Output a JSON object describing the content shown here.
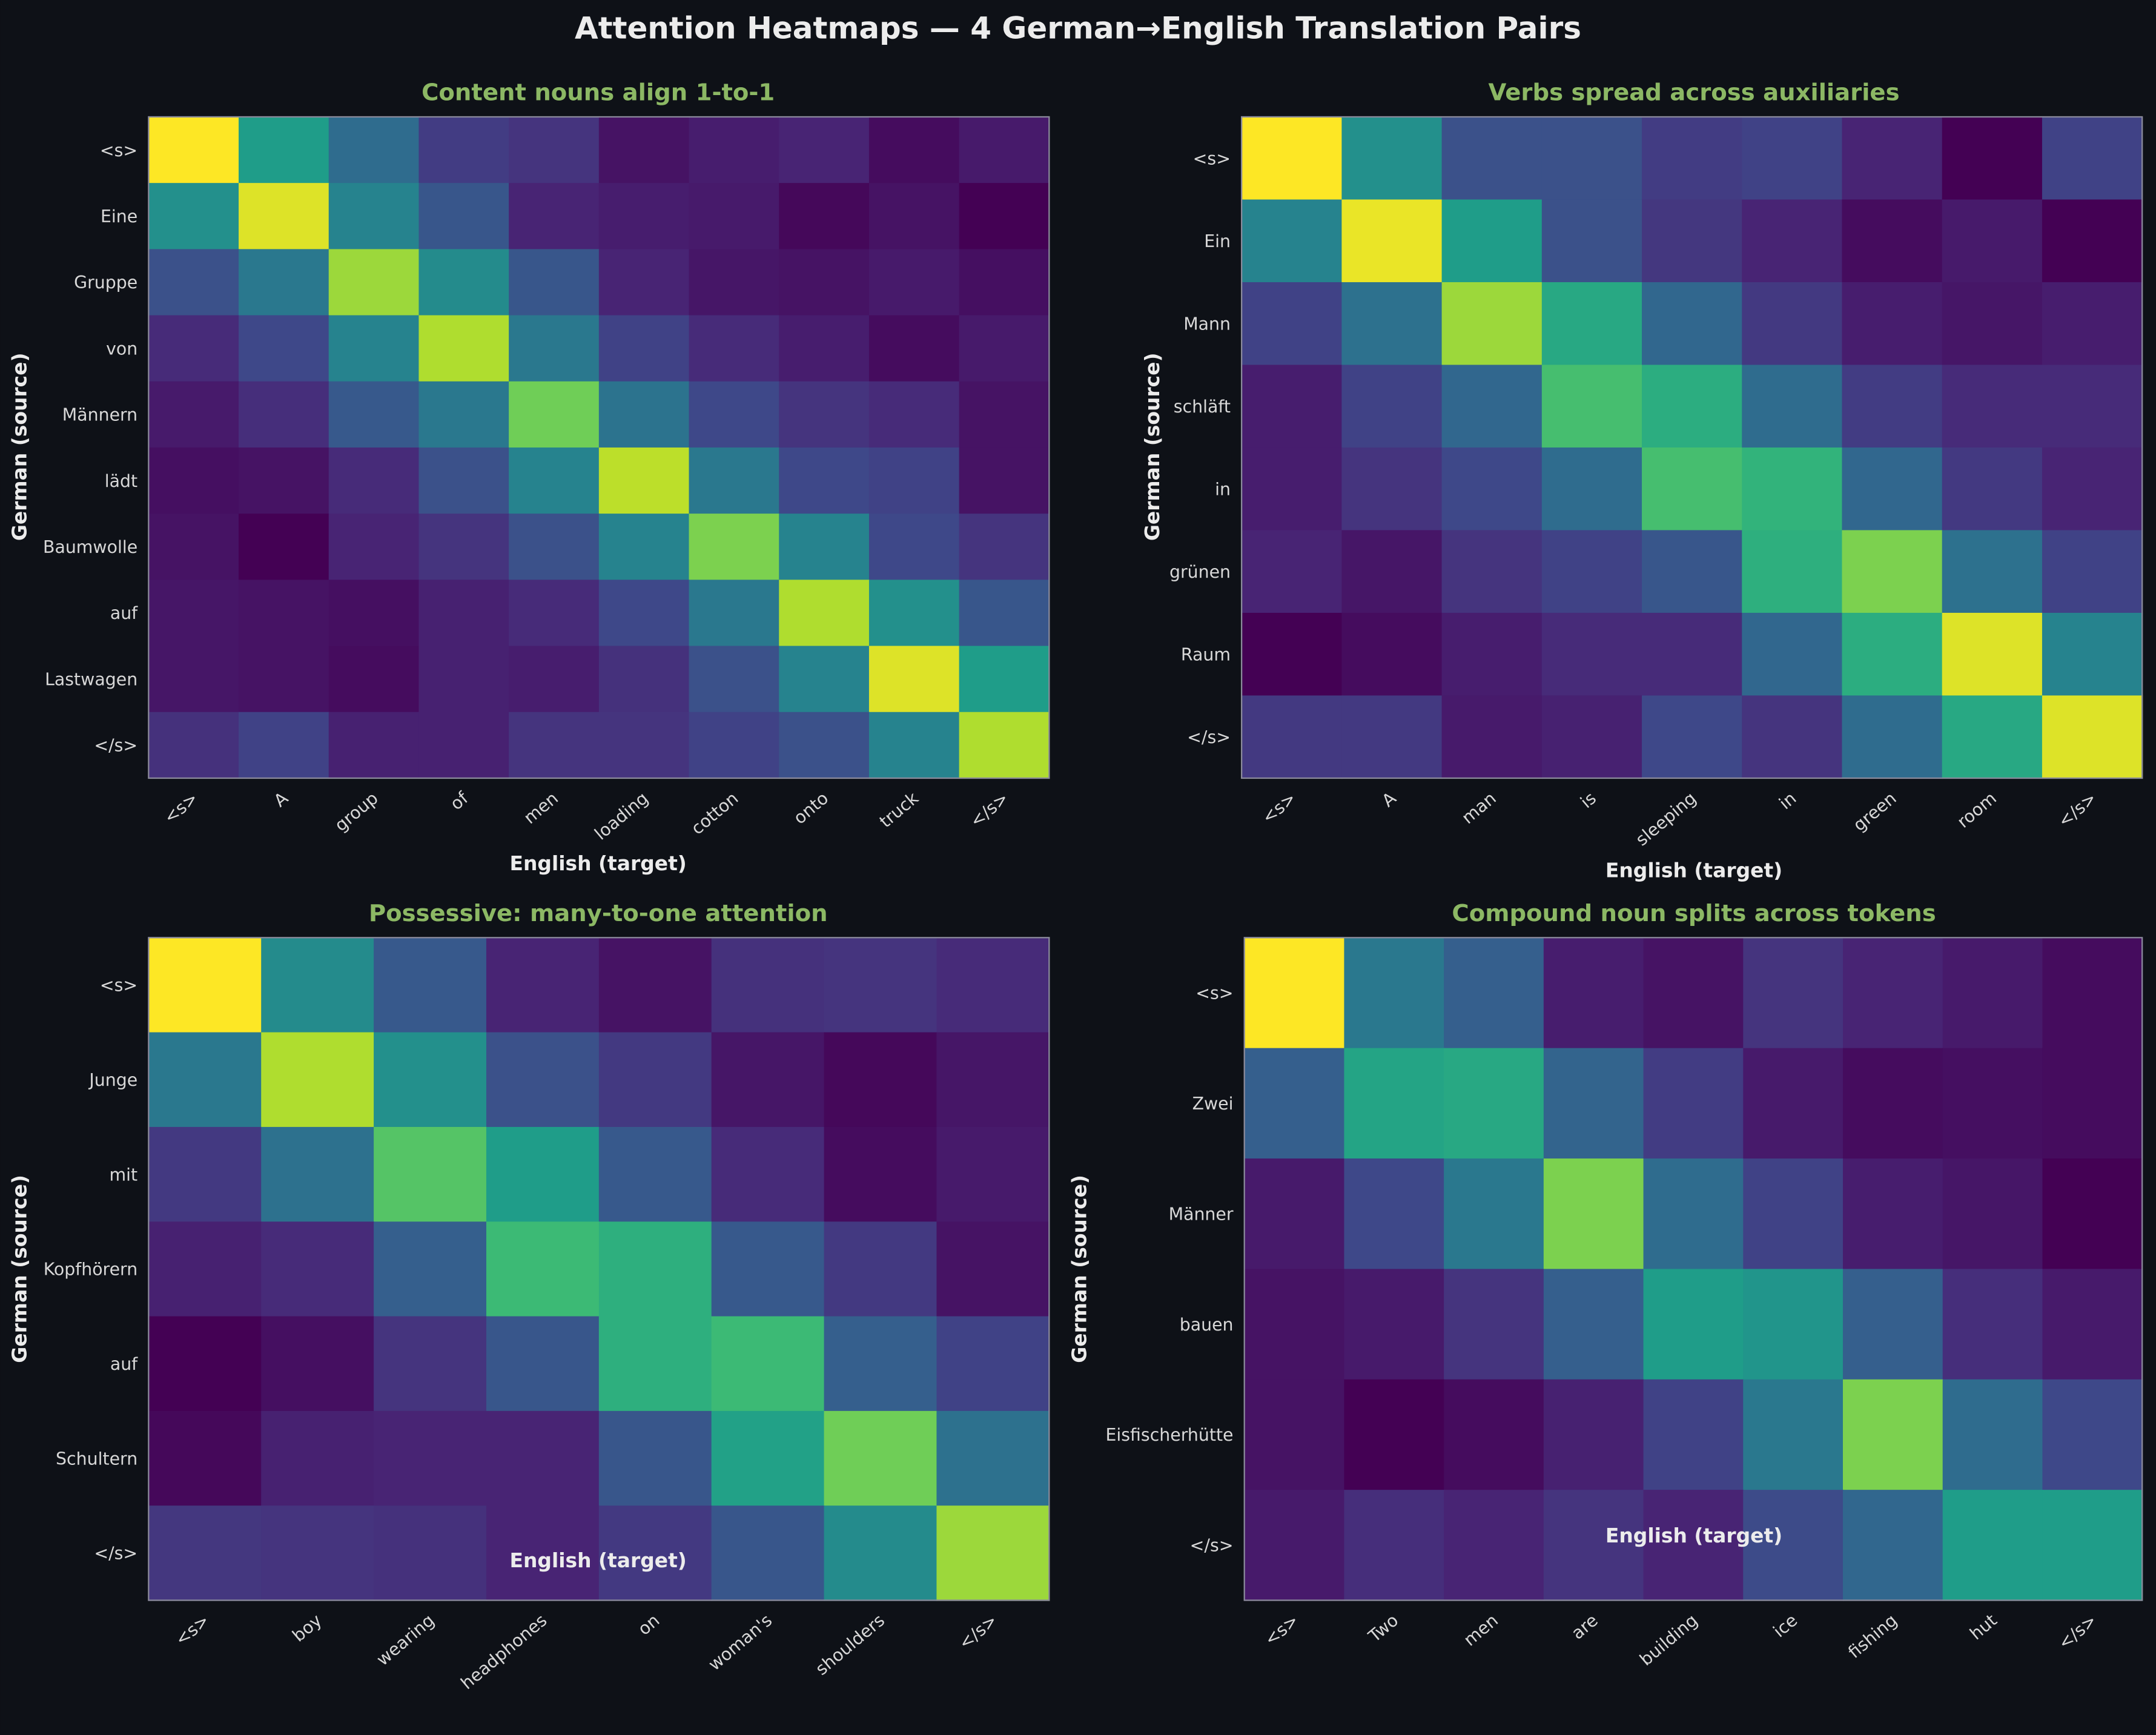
{
  "title": "Attention Heatmaps — 4 German→English Translation Pairs",
  "colormap": [
    "#440154",
    "#482878",
    "#3e4989",
    "#31688e",
    "#26828e",
    "#1f9e89",
    "#35b779",
    "#6ece58",
    "#b5de2b",
    "#fde725"
  ],
  "background": "#0e1117",
  "title_color": "#8cb864",
  "chart_data": [
    {
      "type": "heatmap",
      "title": "Content nouns align 1-to-1",
      "xlabel": "English (target)",
      "ylabel": "German (source)",
      "x": [
        "<s>",
        "A",
        "group",
        "of",
        "men",
        "loading",
        "cotton",
        "onto",
        "truck",
        "</s>"
      ],
      "y": [
        "<s>",
        "Eine",
        "Gruppe",
        "von",
        "Männern",
        "lädt",
        "Baumwolle",
        "auf",
        "Lastwagen",
        "</s>"
      ],
      "values": [
        [
          1.0,
          0.55,
          0.35,
          0.18,
          0.15,
          0.05,
          0.08,
          0.1,
          0.03,
          0.07
        ],
        [
          0.5,
          0.95,
          0.45,
          0.27,
          0.1,
          0.08,
          0.07,
          0.02,
          0.05,
          0.0
        ],
        [
          0.25,
          0.4,
          0.85,
          0.48,
          0.27,
          0.1,
          0.06,
          0.05,
          0.07,
          0.04
        ],
        [
          0.12,
          0.22,
          0.45,
          0.88,
          0.4,
          0.2,
          0.12,
          0.08,
          0.03,
          0.07
        ],
        [
          0.07,
          0.13,
          0.28,
          0.4,
          0.78,
          0.38,
          0.22,
          0.15,
          0.12,
          0.05
        ],
        [
          0.04,
          0.05,
          0.12,
          0.25,
          0.45,
          0.9,
          0.4,
          0.22,
          0.2,
          0.05
        ],
        [
          0.05,
          0.0,
          0.1,
          0.15,
          0.25,
          0.45,
          0.8,
          0.45,
          0.22,
          0.15
        ],
        [
          0.06,
          0.05,
          0.04,
          0.09,
          0.12,
          0.22,
          0.4,
          0.88,
          0.5,
          0.27
        ],
        [
          0.06,
          0.05,
          0.03,
          0.09,
          0.08,
          0.14,
          0.25,
          0.45,
          0.95,
          0.55
        ],
        [
          0.14,
          0.2,
          0.09,
          0.09,
          0.15,
          0.15,
          0.2,
          0.25,
          0.45,
          0.88
        ]
      ]
    },
    {
      "type": "heatmap",
      "title": "Verbs spread across auxiliaries",
      "xlabel": "English (target)",
      "ylabel": "German (source)",
      "x": [
        "<s>",
        "A",
        "man",
        "is",
        "sleeping",
        "in",
        "green",
        "room",
        "</s>"
      ],
      "y": [
        "<s>",
        "Ein",
        "Mann",
        "schläft",
        "in",
        "grünen",
        "Raum",
        "</s>"
      ],
      "values": [
        [
          1.0,
          0.5,
          0.25,
          0.25,
          0.18,
          0.2,
          0.1,
          0.0,
          0.2
        ],
        [
          0.45,
          0.97,
          0.55,
          0.25,
          0.16,
          0.1,
          0.03,
          0.07,
          0.0
        ],
        [
          0.2,
          0.37,
          0.85,
          0.6,
          0.33,
          0.17,
          0.08,
          0.06,
          0.08
        ],
        [
          0.08,
          0.2,
          0.33,
          0.7,
          0.62,
          0.35,
          0.18,
          0.12,
          0.12
        ],
        [
          0.08,
          0.15,
          0.22,
          0.35,
          0.7,
          0.65,
          0.33,
          0.17,
          0.1
        ],
        [
          0.1,
          0.06,
          0.15,
          0.2,
          0.27,
          0.63,
          0.8,
          0.37,
          0.2
        ],
        [
          0.0,
          0.03,
          0.08,
          0.12,
          0.12,
          0.33,
          0.62,
          0.95,
          0.45
        ],
        [
          0.17,
          0.17,
          0.07,
          0.09,
          0.22,
          0.15,
          0.35,
          0.6,
          0.95
        ]
      ]
    },
    {
      "type": "heatmap",
      "title": "Possessive: many-to-one attention",
      "xlabel": "English (target)",
      "ylabel": "German (source)",
      "x": [
        "<s>",
        "boy",
        "wearing",
        "headphones",
        "on",
        "woman's",
        "shoulders",
        "</s>"
      ],
      "y": [
        "<s>",
        "Junge",
        "mit",
        "Kopfhörern",
        "auf",
        "Schultern",
        "</s>"
      ],
      "values": [
        [
          1.0,
          0.48,
          0.28,
          0.1,
          0.05,
          0.14,
          0.15,
          0.12
        ],
        [
          0.4,
          0.88,
          0.5,
          0.25,
          0.17,
          0.06,
          0.02,
          0.06
        ],
        [
          0.17,
          0.37,
          0.73,
          0.55,
          0.28,
          0.12,
          0.03,
          0.07
        ],
        [
          0.09,
          0.12,
          0.3,
          0.68,
          0.63,
          0.28,
          0.17,
          0.05
        ],
        [
          0.0,
          0.04,
          0.15,
          0.27,
          0.63,
          0.68,
          0.3,
          0.2
        ],
        [
          0.02,
          0.09,
          0.1,
          0.1,
          0.27,
          0.57,
          0.78,
          0.37
        ],
        [
          0.16,
          0.15,
          0.14,
          0.1,
          0.17,
          0.27,
          0.48,
          0.85
        ]
      ]
    },
    {
      "type": "heatmap",
      "title": "Compound noun splits across tokens",
      "xlabel": "English (target)",
      "ylabel": "German (source)",
      "x": [
        "<s>",
        "Two",
        "men",
        "are",
        "building",
        "ice",
        "fishing",
        "hut",
        "</s>"
      ],
      "y": [
        "<s>",
        "Zwei",
        "Männer",
        "bauen",
        "Eisfischerhütte",
        "</s>"
      ],
      "values": [
        [
          1.0,
          0.4,
          0.3,
          0.08,
          0.05,
          0.15,
          0.1,
          0.07,
          0.03
        ],
        [
          0.3,
          0.58,
          0.6,
          0.32,
          0.18,
          0.07,
          0.03,
          0.04,
          0.03
        ],
        [
          0.07,
          0.22,
          0.4,
          0.8,
          0.35,
          0.2,
          0.08,
          0.06,
          0.0
        ],
        [
          0.05,
          0.07,
          0.15,
          0.3,
          0.55,
          0.52,
          0.3,
          0.13,
          0.07
        ],
        [
          0.05,
          0.0,
          0.03,
          0.09,
          0.2,
          0.4,
          0.8,
          0.35,
          0.22
        ],
        [
          0.07,
          0.13,
          0.1,
          0.15,
          0.1,
          0.23,
          0.33,
          0.55,
          0.55
        ]
      ]
    }
  ]
}
